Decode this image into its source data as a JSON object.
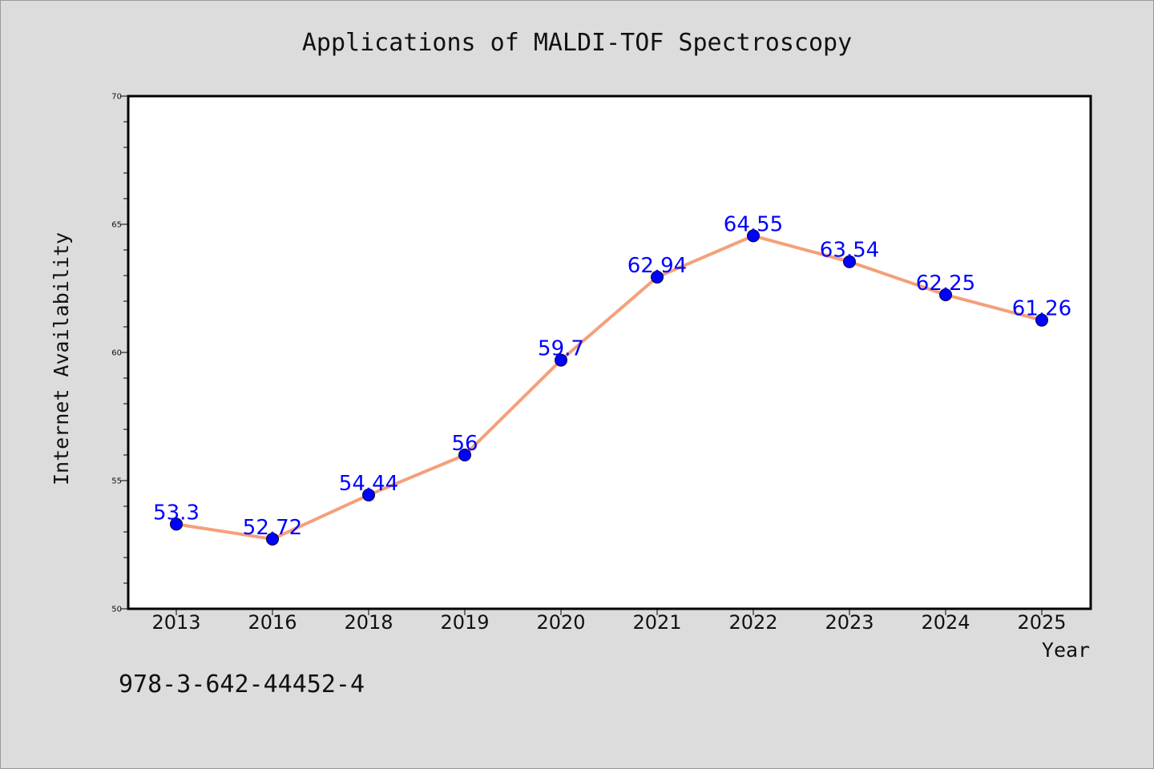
{
  "chart_data": {
    "type": "line",
    "title": "Applications of MALDI-TOF Spectroscopy",
    "xlabel": "Year",
    "ylabel": "Internet Availability",
    "categories": [
      "2013",
      "2016",
      "2018",
      "2019",
      "2020",
      "2021",
      "2022",
      "2023",
      "2024",
      "2025"
    ],
    "values": [
      53.3,
      52.72,
      54.44,
      56,
      59.7,
      62.94,
      64.55,
      63.54,
      62.25,
      61.26
    ],
    "data_labels": [
      "53.3",
      "52.72",
      "54.44",
      "56",
      "59.7",
      "62.94",
      "64.55",
      "63.54",
      "62.25",
      "61.26"
    ],
    "ylim": [
      50,
      70
    ],
    "yticks": [
      "50",
      "55",
      "60",
      "65",
      "70"
    ],
    "grid": false,
    "line_color": "#f4a07a",
    "marker_color": "#0000ff",
    "label_color": "#0000ff"
  },
  "footnote": "978-3-642-44452-4"
}
